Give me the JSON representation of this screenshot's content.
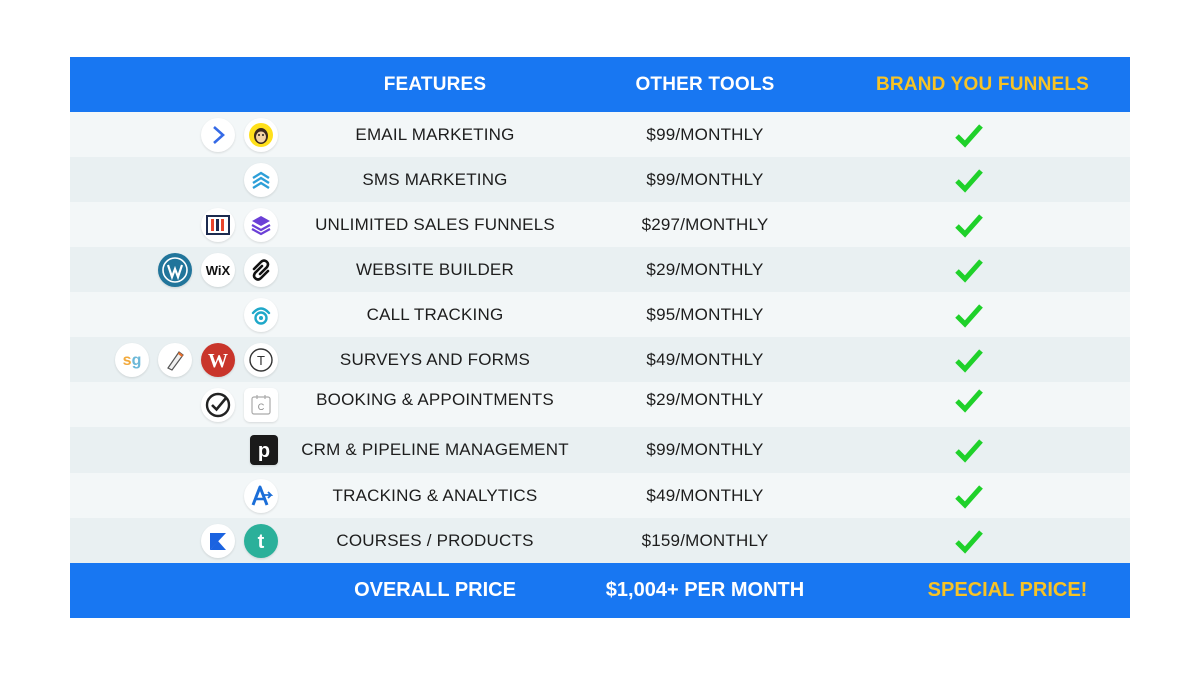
{
  "header": {
    "features": "FEATURES",
    "other_tools": "OTHER TOOLS",
    "brand": "BRAND YOU FUNNELS"
  },
  "rows": [
    {
      "feature": "EMAIL MARKETING",
      "price": "$99/MONTHLY",
      "logos": [
        "activecampaign-logo",
        "mailchimp-logo"
      ]
    },
    {
      "feature": "SMS MARKETING",
      "price": "$99/MONTHLY",
      "logos": [
        "sms-chevrons-logo"
      ]
    },
    {
      "feature": "UNLIMITED SALES FUNNELS",
      "price": "$297/MONTHLY",
      "logos": [
        "clickfunnels-logo",
        "layers-logo"
      ]
    },
    {
      "feature": "WEBSITE BUILDER",
      "price": "$29/MONTHLY",
      "logos": [
        "wordpress-logo",
        "wix-logo",
        "squarespace-logo"
      ]
    },
    {
      "feature": "CALL TRACKING",
      "price": "$95/MONTHLY",
      "logos": [
        "calltracking-logo"
      ]
    },
    {
      "feature": "SURVEYS AND FORMS",
      "price": "$49/MONTHLY",
      "logos": [
        "surveygizmo-logo",
        "formstack-logo",
        "wufoo-logo",
        "typeform-logo"
      ]
    },
    {
      "feature": "BOOKING & APPOINTMENTS",
      "price": "$29/MONTHLY",
      "logos": [
        "acuity-logo",
        "calendly-logo"
      ]
    },
    {
      "feature": "CRM & PIPELINE MANAGEMENT",
      "price": "$99/MONTHLY",
      "logos": [
        "pipedrive-logo"
      ]
    },
    {
      "feature": "TRACKING & ANALYTICS",
      "price": "$49/MONTHLY",
      "logos": [
        "analytics-logo"
      ]
    },
    {
      "feature": "COURSES / PRODUCTS",
      "price": "$159/MONTHLY",
      "logos": [
        "kajabi-logo",
        "teachable-logo"
      ]
    }
  ],
  "footer": {
    "label": "OVERALL PRICE",
    "other_total": "$1,004+ PER MONTH",
    "brand_price": "SPECIAL PRICE!"
  },
  "colors": {
    "bar": "#1877f2",
    "gold": "#f7c325",
    "check": "#1fd12a"
  }
}
